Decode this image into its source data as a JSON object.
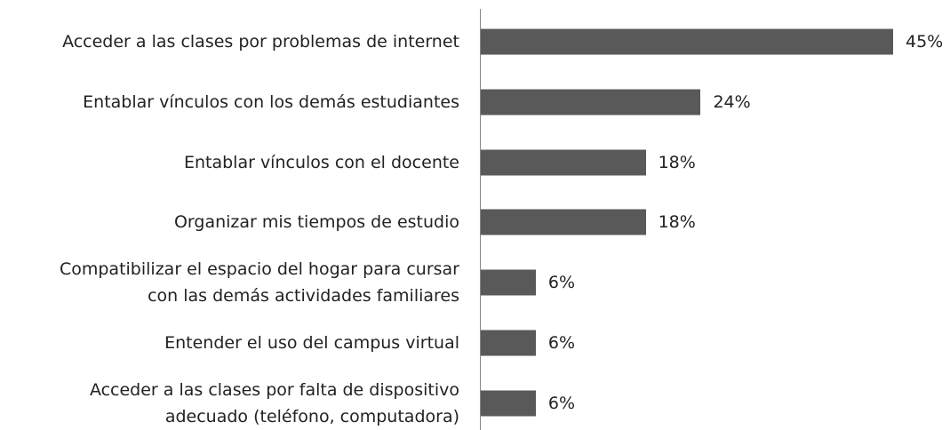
{
  "chart_data": {
    "type": "bar",
    "orientation": "horizontal",
    "color": "#595959",
    "categories": [
      "Acceder a las clases por problemas de internet",
      "Entablar vínculos con los demás estudiantes",
      "Entablar vínculos con el docente",
      "Organizar mis tiempos de estudio",
      "Compatibilizar el espacio del hogar para cursar\ncon las demás actividades familiares",
      "Entender el uso del campus virtual",
      "Acceder a las clases por falta de dispositivo\nadecuado (teléfono, computadora)"
    ],
    "values": [
      45,
      24,
      18,
      18,
      6,
      6,
      6
    ],
    "value_labels": [
      "45%",
      "24%",
      "18%",
      "18%",
      "6%",
      "6%",
      "6%"
    ]
  }
}
